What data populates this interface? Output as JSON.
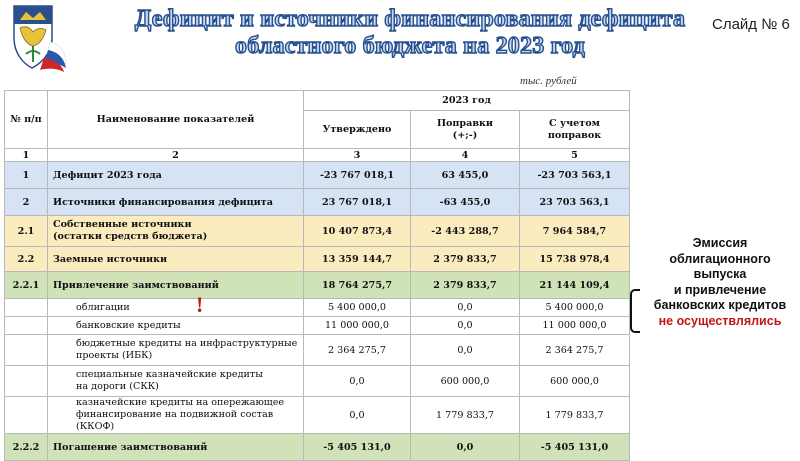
{
  "slide": {
    "title_line1": "Дефицит и источники финансирования дефицита",
    "title_line2": "областного бюджета на 2023 год",
    "slide_label": "Слайд № 6",
    "units": "тыс. рублей"
  },
  "table": {
    "headers": {
      "num": "№ п/п",
      "name": "Наименование показателей",
      "year": "2023 год",
      "approved": "Утверждено",
      "amend_1": "Поправки",
      "amend_2": "(+;-)",
      "with_1": "С учетом",
      "with_2": "поправок"
    },
    "col_numbers": [
      "1",
      "2",
      "3",
      "4",
      "5"
    ],
    "rows": [
      {
        "num": "1",
        "name_1": "Дефицит 2023 года",
        "approved": "-23 767 018,1",
        "amend": "63 455,0",
        "total": "-23 703 563,1"
      },
      {
        "num": "2",
        "name_1": "Источники финансирования дефицита",
        "approved": "23 767 018,1",
        "amend": "-63 455,0",
        "total": "23 703 563,1"
      },
      {
        "num": "2.1",
        "name_1": "Собственные источники",
        "name_2": "(остатки средств бюджета)",
        "approved": "10 407 873,4",
        "amend": "-2 443 288,7",
        "total": "7 964 584,7"
      },
      {
        "num": "2.2",
        "name_1": "Заемные источники",
        "approved": "13 359 144,7",
        "amend": "2 379 833,7",
        "total": "15 738 978,4"
      },
      {
        "num": "2.2.1",
        "name_1": "Привлечение заимствований",
        "approved": "18 764 275,7",
        "amend": "2 379 833,7",
        "total": "21 144 109,4"
      },
      {
        "num": "",
        "name_1": "облигации",
        "approved": "5 400 000,0",
        "amend": "0,0",
        "total": "5 400 000,0"
      },
      {
        "num": "",
        "name_1": "банковские кредиты",
        "approved": "11 000 000,0",
        "amend": "0,0",
        "total": "11 000 000,0"
      },
      {
        "num": "",
        "name_1": "бюджетные кредиты на инфраструктурные",
        "name_2": "проекты (ИБК)",
        "approved": "2 364 275,7",
        "amend": "0,0",
        "total": "2 364 275,7"
      },
      {
        "num": "",
        "name_1": "специальные казначейские кредиты",
        "name_2": "на дороги (СКК)",
        "approved": "0,0",
        "amend": "600 000,0",
        "total": "600 000,0"
      },
      {
        "num": "",
        "name_1": "казначейские кредиты на опережающее",
        "name_2": "финансирование на подвижной состав (ККОФ)",
        "approved": "0,0",
        "amend": "1 779 833,7",
        "total": "1 779 833,7"
      },
      {
        "num": "2.2.2",
        "name_1": "Погашение заимствований",
        "approved": "-5 405 131,0",
        "amend": "0,0",
        "total": "-5 405 131,0"
      }
    ]
  },
  "annotation": {
    "exclamation": "!",
    "lines": [
      "Эмиссия",
      "облигационного",
      "выпуска",
      "и привлечение",
      "банковских кредитов"
    ],
    "highlight": "не осуществлялись"
  },
  "colors": {
    "title_fill": "#c7d8ef",
    "title_stroke": "#26508f",
    "row_blue": "#d6e3f4",
    "row_yellow": "#fbecc0",
    "row_green": "#cfe2b8",
    "accent_red": "#c0161b"
  },
  "icons": {
    "emblem": "belgorod-region-coat-of-arms-icon"
  }
}
